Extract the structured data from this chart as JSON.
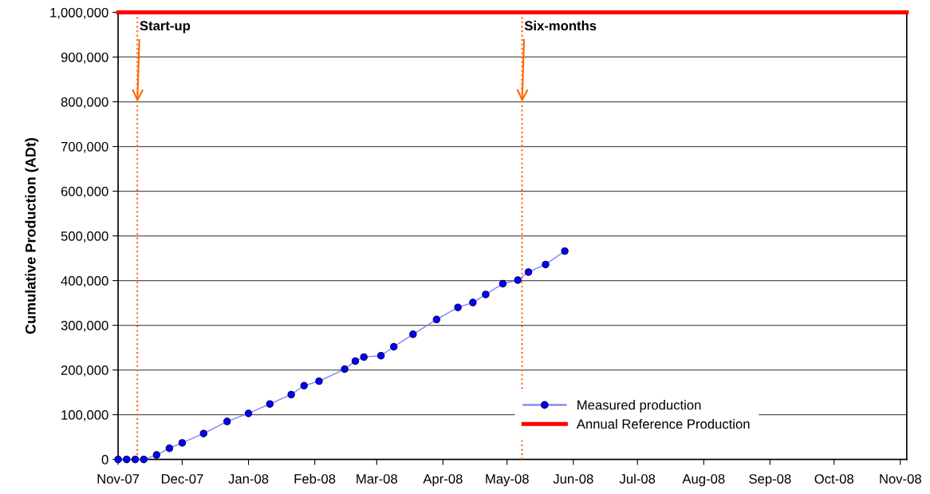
{
  "chart_data": {
    "type": "line",
    "ylabel": "Cumulative Production (ADt)",
    "xlim": [
      "2007-11-01",
      "2008-11-04"
    ],
    "xticks": [
      {
        "value": "2007-11-01",
        "label": "Nov-07"
      },
      {
        "value": "2007-12-01",
        "label": "Dec-07"
      },
      {
        "value": "2008-01-01",
        "label": "Jan-08"
      },
      {
        "value": "2008-02-01",
        "label": "Feb-08"
      },
      {
        "value": "2008-03-01",
        "label": "Mar-08"
      },
      {
        "value": "2008-04-01",
        "label": "Apr-08"
      },
      {
        "value": "2008-05-01",
        "label": "May-08"
      },
      {
        "value": "2008-06-01",
        "label": "Jun-08"
      },
      {
        "value": "2008-07-01",
        "label": "Jul-08"
      },
      {
        "value": "2008-08-01",
        "label": "Aug-08"
      },
      {
        "value": "2008-09-01",
        "label": "Sep-08"
      },
      {
        "value": "2008-10-01",
        "label": "Oct-08"
      },
      {
        "value": "2008-11-01",
        "label": "Nov-08"
      }
    ],
    "ylim": [
      0,
      1000000
    ],
    "yticks": [
      0,
      {
        "value": 100000,
        "label": "100,000"
      },
      {
        "value": 200000,
        "label": "200,000"
      },
      {
        "value": 300000,
        "label": "300,000"
      },
      {
        "value": 400000,
        "label": "400,000"
      },
      {
        "value": 500000,
        "label": "500,000"
      },
      {
        "value": 600000,
        "label": "600,000"
      },
      {
        "value": 700000,
        "label": "700,000"
      },
      {
        "value": 800000,
        "label": "800,000"
      },
      {
        "value": 900000,
        "label": "900,000"
      },
      {
        "value": 1000000,
        "label": "1,000,000"
      }
    ],
    "grid": "y",
    "legend": "bottom right",
    "series": [
      {
        "name": "Measured production",
        "color": "#0000ff",
        "marker": "circle",
        "x": [
          "2007-11-01",
          "2007-11-05",
          "2007-11-09",
          "2007-11-13",
          "2007-11-19",
          "2007-11-25",
          "2007-12-01",
          "2007-12-11",
          "2007-12-22",
          "2008-01-01",
          "2008-01-11",
          "2008-01-21",
          "2008-01-27",
          "2008-02-03",
          "2008-02-15",
          "2008-02-20",
          "2008-02-24",
          "2008-03-03",
          "2008-03-09",
          "2008-03-18",
          "2008-03-29",
          "2008-04-08",
          "2008-04-15",
          "2008-04-21",
          "2008-04-29",
          "2008-05-06",
          "2008-05-11",
          "2008-05-19",
          "2008-05-28"
        ],
        "values": [
          0,
          0,
          0,
          0,
          10000,
          25000,
          37000,
          58000,
          85000,
          103000,
          124000,
          145000,
          165000,
          175000,
          202000,
          220000,
          229000,
          232000,
          252000,
          280000,
          313000,
          340000,
          351000,
          369000,
          393000,
          401000,
          419000,
          436000,
          466000
        ]
      },
      {
        "name": "Annual Reference Production",
        "color": "#ff0000",
        "marker": "none",
        "x": [
          "2007-11-01",
          "2008-11-04"
        ],
        "values": [
          1000000,
          1000000
        ]
      }
    ],
    "ref_lines": [
      {
        "axis": "x",
        "value": "2007-11-10",
        "color": "#ff6600",
        "line_style": "dotted"
      },
      {
        "axis": "x",
        "value": "2008-05-08",
        "color": "#ff6600",
        "line_style": "dotted"
      }
    ],
    "annotations": [
      {
        "text": "Start-up",
        "x": "2007-11-10",
        "y": 800000
      },
      {
        "text": "Six-months",
        "x": "2008-05-08",
        "y": 800000
      }
    ]
  }
}
